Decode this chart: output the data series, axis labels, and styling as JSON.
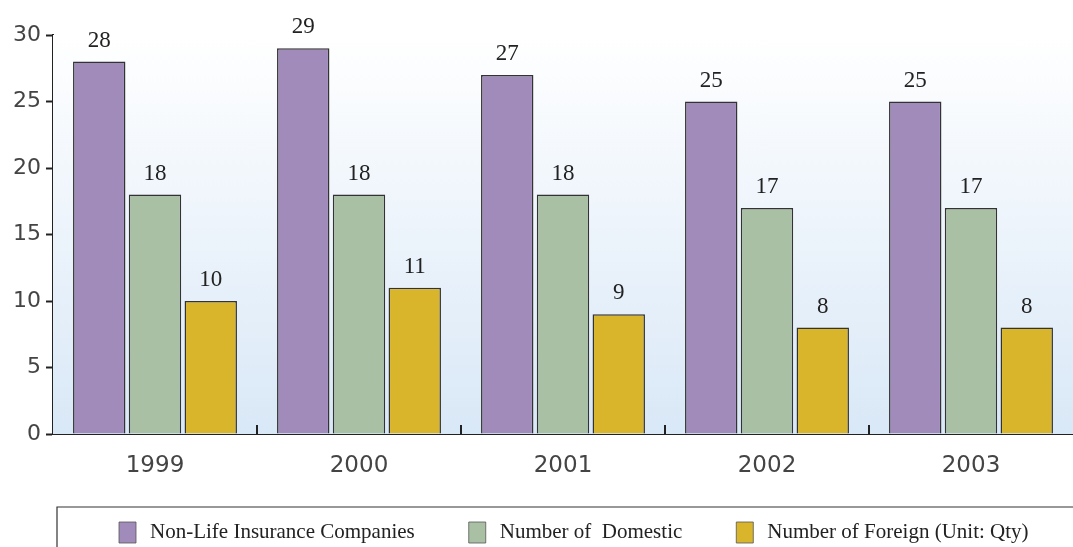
{
  "chart_data": {
    "type": "bar",
    "categories": [
      "1999",
      "2000",
      "2001",
      "2002",
      "2003"
    ],
    "series": [
      {
        "name": "Non-Life Insurance Companies",
        "color": "#a08bba",
        "values": [
          28,
          29,
          27,
          25,
          25
        ]
      },
      {
        "name": "Number of  Domestic",
        "color": "#a9c0a4",
        "values": [
          18,
          18,
          18,
          17,
          17
        ]
      },
      {
        "name": "Number of Foreign (Unit: Qty)",
        "color": "#d9b52c",
        "values": [
          10,
          11,
          9,
          8,
          8
        ]
      }
    ],
    "ylim": [
      0,
      30
    ],
    "yticks": [
      0,
      5,
      10,
      15,
      20,
      25,
      30
    ],
    "legend": "bottom",
    "data_labels": true
  }
}
